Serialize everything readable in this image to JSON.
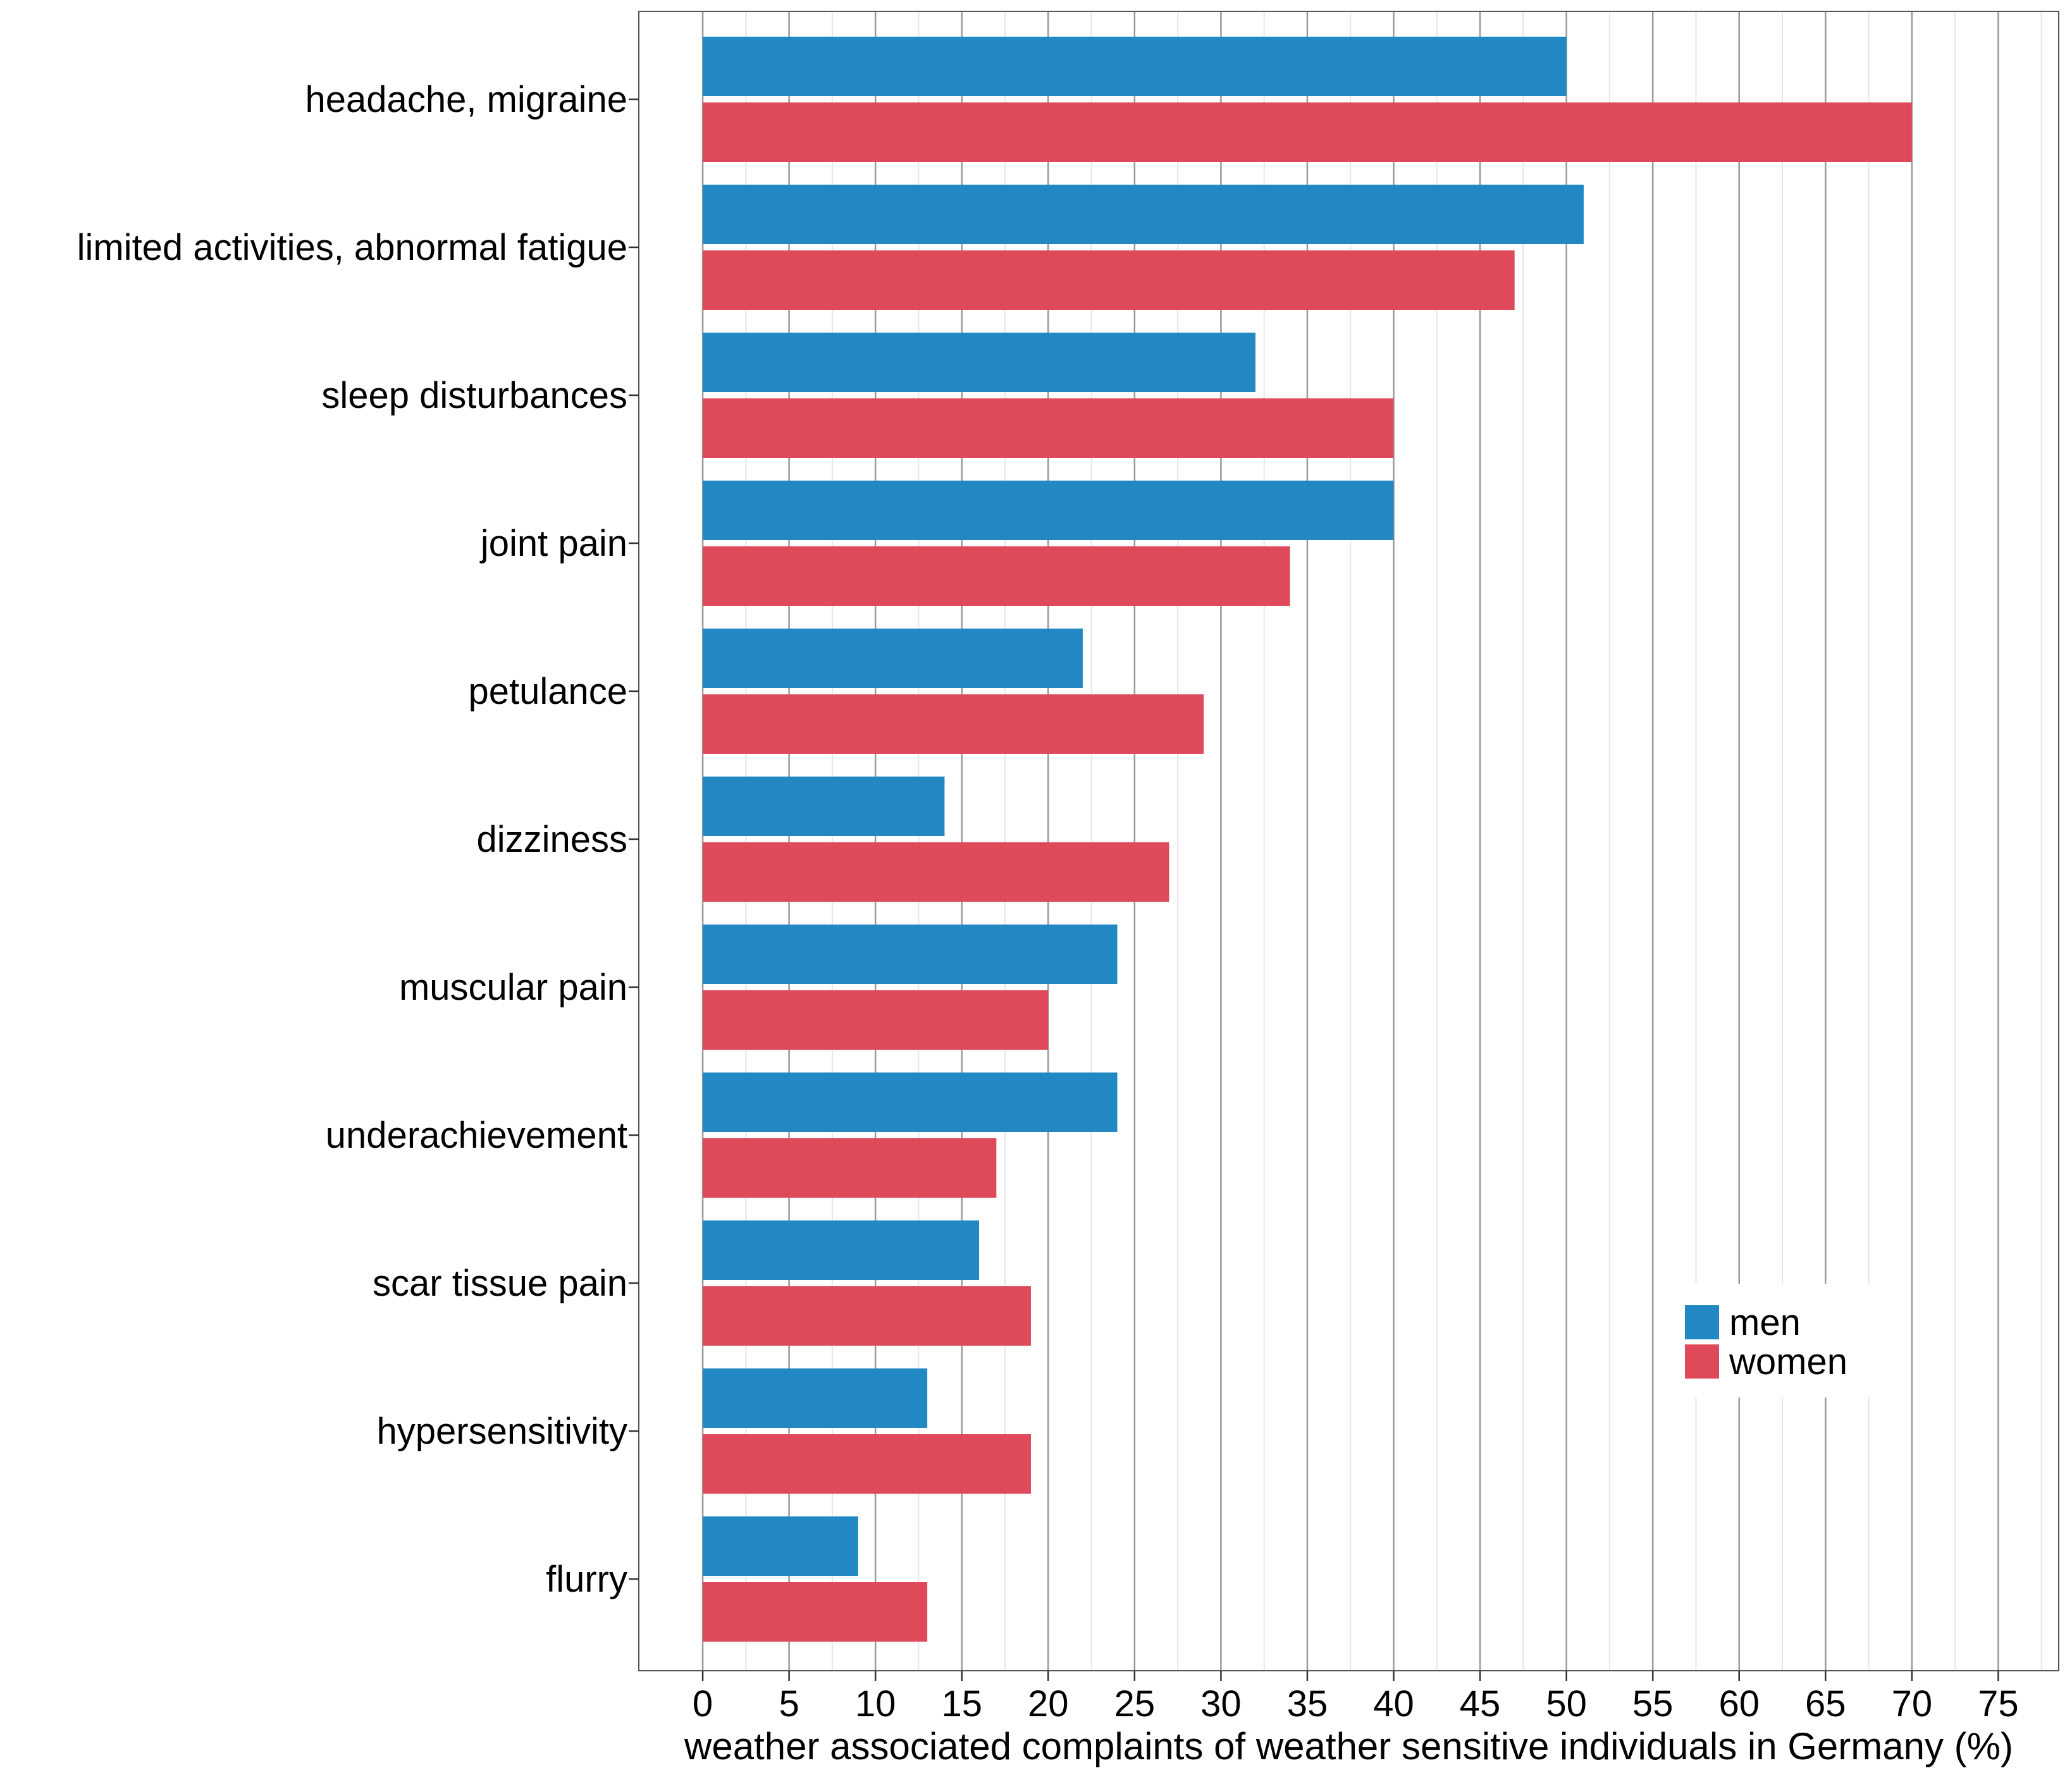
{
  "chart_data": {
    "type": "bar",
    "orientation": "horizontal",
    "categories": [
      "headache, migraine",
      "limited activities, abnormal fatigue",
      "sleep disturbances",
      "joint pain",
      "petulance",
      "dizziness",
      "muscular pain",
      "underachievement",
      "scar tissue pain",
      "hypersensitivity",
      "flurry"
    ],
    "series": [
      {
        "name": "men",
        "color": "#2288c4",
        "values": [
          50,
          51,
          32,
          40,
          22,
          14,
          24,
          24,
          16,
          13,
          9
        ]
      },
      {
        "name": "women",
        "color": "#df4a5a",
        "values": [
          70,
          47,
          40,
          34,
          29,
          27,
          20,
          17,
          19,
          19,
          13
        ]
      }
    ],
    "xlabel": "weather associated complaints of weather sensitive individuals in Germany (%)",
    "ylabel": "",
    "title": "",
    "xlim": [
      -3.7,
      78.5
    ],
    "xticks": [
      0,
      5,
      10,
      15,
      20,
      25,
      30,
      35,
      40,
      45,
      50,
      55,
      60,
      65,
      70,
      75
    ],
    "xtick_labels": [
      "0",
      "5",
      "10",
      "15",
      "20",
      "25",
      "30",
      "35",
      "40",
      "45",
      "50",
      "55",
      "60",
      "65",
      "70",
      "75"
    ],
    "grid": true,
    "legend_position": "bottom-right"
  }
}
